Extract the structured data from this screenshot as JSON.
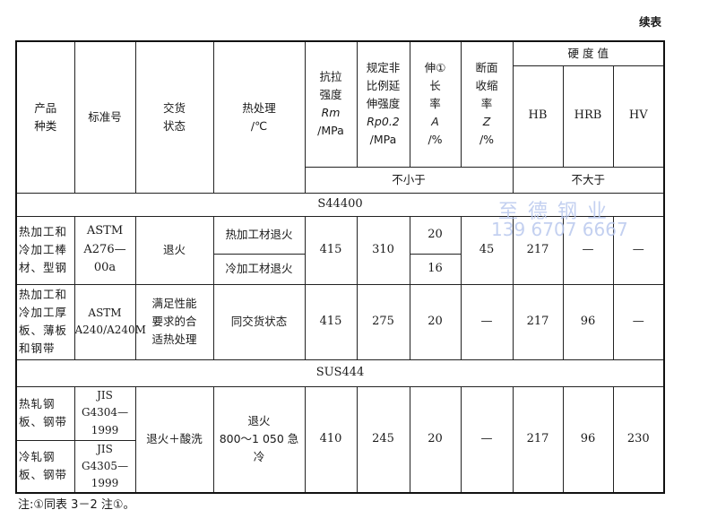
{
  "continued": "续表",
  "header": {
    "product": [
      "产品",
      "种类"
    ],
    "standard": "标准号",
    "delivery": [
      "交货",
      "状态"
    ],
    "heat": [
      "热处理",
      "/℃"
    ],
    "tensile": [
      "抗拉",
      "强度",
      "Rm",
      "/MPa"
    ],
    "yield": [
      "规定非",
      "比例延",
      "伸强度",
      "Rp0.2",
      "/MPa"
    ],
    "elong": [
      "伸①",
      "长",
      "率",
      "A",
      "/%"
    ],
    "reduction": [
      "断面",
      "收缩",
      "率",
      "Z",
      "/%"
    ],
    "hardness": "硬 度 值",
    "hb": "HB",
    "hrb": "HRB",
    "hv": "HV",
    "min": "不小于",
    "max": "不大于"
  },
  "sections": [
    {
      "grade": "S44400",
      "rows": [
        {
          "product": "热加工和冷加工棒材、型钢",
          "standard": [
            "ASTM",
            "A276—00a"
          ],
          "delivery": "退火",
          "heat": [
            "热加工材退火",
            "冷加工材退火"
          ],
          "rm": "415",
          "rp": "310",
          "a": [
            "20",
            "16"
          ],
          "z": "45",
          "hb": "217",
          "hrb": "—",
          "hv": "—"
        },
        {
          "product": "热加工和冷加工厚板、薄板和钢带",
          "standard": [
            "ASTM",
            "A240/A240M"
          ],
          "delivery": [
            "满足性能",
            "要求的合",
            "适热处理"
          ],
          "heat": "同交货状态",
          "rm": "415",
          "rp": "275",
          "a": "20",
          "z": "—",
          "hb": "217",
          "hrb": "96",
          "hv": "—"
        }
      ]
    },
    {
      "grade": "SUS444",
      "rows": [
        {
          "product": [
            "热轧钢板、钢带",
            "冷轧钢板、钢带"
          ],
          "standard": [
            [
              "JIS",
              "G4304—1999"
            ],
            [
              "JIS",
              "G4305—1999"
            ]
          ],
          "delivery": "退火＋酸洗",
          "heat": [
            "退火",
            "800～1 050 急冷"
          ],
          "rm": "410",
          "rp": "245",
          "a": "20",
          "z": "—",
          "hb": "217",
          "hrb": "96",
          "hv": "230"
        }
      ]
    }
  ],
  "watermark": {
    "name": "至 德 钢 业",
    "phone": "139 6707 6667"
  },
  "note": "注:①同表 3－2 注①。"
}
